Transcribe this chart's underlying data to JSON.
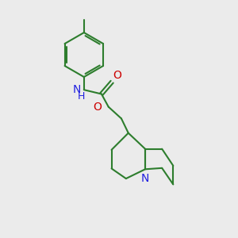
{
  "bg_color": "#ebebeb",
  "bond_color": "#2d7d2d",
  "N_color": "#2020e0",
  "O_color": "#cc0000",
  "line_width": 1.5,
  "font_size": 10,
  "figsize": [
    3.0,
    3.0
  ],
  "dpi": 100,
  "xlim": [
    0,
    10
  ],
  "ylim": [
    0,
    10
  ]
}
